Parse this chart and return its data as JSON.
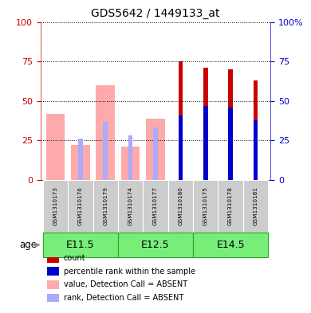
{
  "title": "GDS5642 / 1449133_at",
  "samples": [
    "GSM1310173",
    "GSM1310176",
    "GSM1310179",
    "GSM1310174",
    "GSM1310177",
    "GSM1310180",
    "GSM1310175",
    "GSM1310178",
    "GSM1310181"
  ],
  "age_groups": [
    {
      "label": "E11.5",
      "start": 0,
      "end": 3
    },
    {
      "label": "E12.5",
      "start": 3,
      "end": 6
    },
    {
      "label": "E14.5",
      "start": 6,
      "end": 9
    }
  ],
  "value_absent": [
    42,
    22,
    60,
    21,
    39,
    null,
    null,
    null,
    null
  ],
  "rank_absent": [
    null,
    26,
    37,
    28,
    33,
    null,
    null,
    null,
    null
  ],
  "count_present": [
    null,
    null,
    null,
    null,
    null,
    75,
    71,
    70,
    63
  ],
  "rank_present": [
    null,
    null,
    null,
    null,
    null,
    41,
    47,
    46,
    38
  ],
  "ylim": [
    0,
    100
  ],
  "color_count": "#cc0000",
  "color_rank_present": "#0000cc",
  "color_value_absent": "#ffaaaa",
  "color_rank_absent": "#aaaaff",
  "left_axis_color": "#cc0000",
  "right_axis_color": "#0000cc",
  "age_bg_color": "#77ee77",
  "age_border_color": "#22aa22",
  "sample_bg_color": "#cccccc",
  "legend_items": [
    {
      "label": "count",
      "color": "#cc0000"
    },
    {
      "label": "percentile rank within the sample",
      "color": "#0000cc"
    },
    {
      "label": "value, Detection Call = ABSENT",
      "color": "#ffaaaa"
    },
    {
      "label": "rank, Detection Call = ABSENT",
      "color": "#aaaaff"
    }
  ]
}
